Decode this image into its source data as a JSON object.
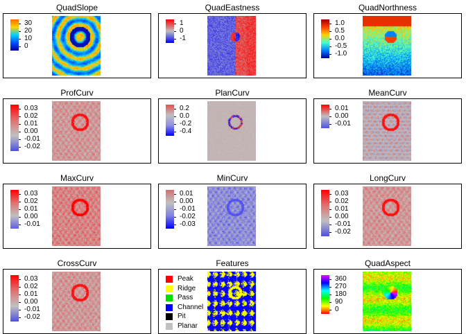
{
  "chart_data": [
    {
      "type": "heatmap",
      "title": "QuadSlope",
      "legend": {
        "ticks": [
          "30",
          "20",
          "10",
          "0"
        ],
        "colors": [
          "#ff6a00",
          "#ffd200",
          "#00d0ff",
          "#0050ff",
          "#0000a0"
        ]
      },
      "pattern": "slope"
    },
    {
      "type": "heatmap",
      "title": "QuadEastness",
      "legend": {
        "ticks": [
          "1",
          "0",
          "-1"
        ],
        "colors": [
          "#ff0000",
          "#c0c0c0",
          "#0000ff"
        ]
      },
      "pattern": "east"
    },
    {
      "type": "heatmap",
      "title": "QuadNorthness",
      "legend": {
        "ticks": [
          "1.0",
          "0.5",
          "0.0",
          "-0.5",
          "-1.0"
        ],
        "colors": [
          "#a00000",
          "#ff4000",
          "#ffd000",
          "#40ffd0",
          "#0080ff",
          "#0000a0"
        ]
      },
      "pattern": "north"
    },
    {
      "type": "heatmap",
      "title": "ProfCurv",
      "legend": {
        "ticks": [
          "0.03",
          "0.02",
          "0.01",
          "0.00",
          "-0.01",
          "-0.02"
        ],
        "colors": [
          "#ff0000",
          "#e07070",
          "#c0c0c0",
          "#5050e0"
        ]
      },
      "pattern": "curv"
    },
    {
      "type": "heatmap",
      "title": "PlanCurv",
      "legend": {
        "ticks": [
          "0.2",
          "0.0",
          "-0.2",
          "-0.4"
        ],
        "colors": [
          "#e05050",
          "#c0c0c0",
          "#9090e0",
          "#0000ff"
        ]
      },
      "pattern": "plan"
    },
    {
      "type": "heatmap",
      "title": "MeanCurv",
      "legend": {
        "ticks": [
          "0.01",
          "0.00",
          "-0.01"
        ],
        "colors": [
          "#ff0000",
          "#c0c0c0",
          "#5050e0"
        ]
      },
      "pattern": "curv"
    },
    {
      "type": "heatmap",
      "title": "MaxCurv",
      "legend": {
        "ticks": [
          "0.03",
          "0.02",
          "0.01",
          "0.00",
          "-0.01"
        ],
        "colors": [
          "#ff0000",
          "#e07070",
          "#c0c0c0",
          "#6060e0"
        ]
      },
      "pattern": "maxc"
    },
    {
      "type": "heatmap",
      "title": "MinCurv",
      "legend": {
        "ticks": [
          "0.01",
          "0.00",
          "-0.01",
          "-0.02",
          "-0.03"
        ],
        "colors": [
          "#d07070",
          "#c0c0c0",
          "#8080e0",
          "#0000ff"
        ]
      },
      "pattern": "minc"
    },
    {
      "type": "heatmap",
      "title": "LongCurv",
      "legend": {
        "ticks": [
          "0.03",
          "0.02",
          "0.01",
          "0.00",
          "-0.01",
          "-0.02"
        ],
        "colors": [
          "#ff0000",
          "#e07070",
          "#c0c0c0",
          "#5050e0"
        ]
      },
      "pattern": "curv"
    },
    {
      "type": "heatmap",
      "title": "CrossCurv",
      "legend": {
        "ticks": [
          "0.03",
          "0.02",
          "0.01",
          "0.00",
          "-0.01",
          "-0.02"
        ],
        "colors": [
          "#ff0000",
          "#e07070",
          "#c0c0c0",
          "#5050e0"
        ]
      },
      "pattern": "cross"
    },
    {
      "type": "heatmap",
      "title": "Features",
      "categories": [
        {
          "label": "Peak",
          "color": "#ff0000"
        },
        {
          "label": "Ridge",
          "color": "#ffff00"
        },
        {
          "label": "Pass",
          "color": "#00e000"
        },
        {
          "label": "Channel",
          "color": "#0000ff"
        },
        {
          "label": "Pit",
          "color": "#000000"
        },
        {
          "label": "Planar",
          "color": "#c0c0c0"
        }
      ],
      "pattern": "features"
    },
    {
      "type": "heatmap",
      "title": "QuadAspect",
      "legend": {
        "ticks": [
          "360",
          "270",
          "180",
          "90",
          "0"
        ],
        "colors": [
          "#ff00ff",
          "#0000ff",
          "#00ffff",
          "#00ff00",
          "#ffff00",
          "#ff0000"
        ]
      },
      "pattern": "aspect"
    }
  ]
}
